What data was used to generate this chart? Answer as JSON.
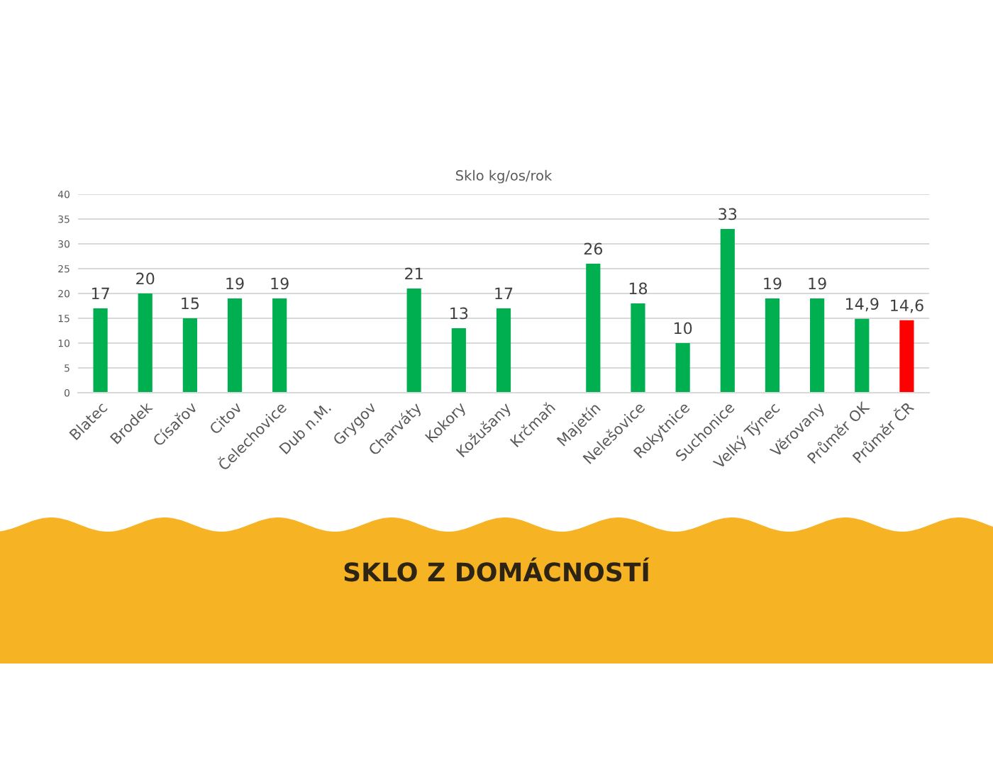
{
  "chart_data": {
    "type": "bar",
    "title": "SKLO Z DOMÁCNOSTÍ",
    "subtitle": "Sklo kg/os/rok",
    "categories": [
      "Blatec",
      "Brodek",
      "Císařov",
      "Citov",
      "Čelechovice",
      "Dub n.M.",
      "Grygov",
      "Charváty",
      "Kokory",
      "Kožušany",
      "Krčmaň",
      "Majetín",
      "Nelešovice",
      "Rokytnice",
      "Suchonice",
      "Velký Týnec",
      "Věrovany",
      "Průměr OK",
      "Průměr ČR"
    ],
    "values": [
      17,
      20,
      15,
      19,
      19,
      null,
      null,
      21,
      13,
      17,
      null,
      26,
      18,
      10,
      33,
      19,
      19,
      14.9,
      14.6
    ],
    "value_labels": [
      "17",
      "20",
      "15",
      "19",
      "19",
      null,
      null,
      "21",
      "13",
      "17",
      null,
      "26",
      "18",
      "10",
      "33",
      "19",
      "19",
      "14,9",
      "14,6"
    ],
    "colors": [
      "#00b050",
      "#00b050",
      "#00b050",
      "#00b050",
      "#00b050",
      "#00b050",
      "#00b050",
      "#00b050",
      "#00b050",
      "#00b050",
      "#00b050",
      "#00b050",
      "#00b050",
      "#00b050",
      "#00b050",
      "#00b050",
      "#00b050",
      "#00b050",
      "#ff0000"
    ],
    "ylim": [
      0,
      40
    ],
    "yticks": [
      0,
      5,
      10,
      15,
      20,
      25,
      30,
      35,
      40
    ],
    "grid": "y"
  }
}
